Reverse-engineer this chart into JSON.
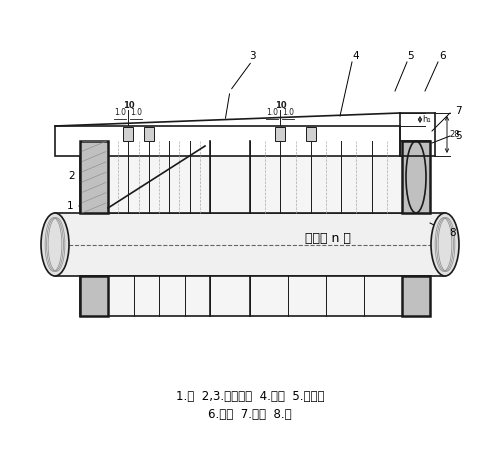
{
  "bg_color": "#ffffff",
  "line_color": "#1a1a1a",
  "caption_line1": "1.键  2,3.通风槽板  4.冲片  5.齿压板",
  "caption_line2": "6.压圈  7.弧键  8.轴",
  "label_tongfengcao": "通风槽 n 个",
  "fig_width": 5.0,
  "fig_height": 4.71,
  "font_size_label": 7.5,
  "font_size_caption": 8.5,
  "font_size_dim": 5.5,
  "lw_main": 1.2,
  "lw_thin": 0.7,
  "lw_thick": 1.8
}
